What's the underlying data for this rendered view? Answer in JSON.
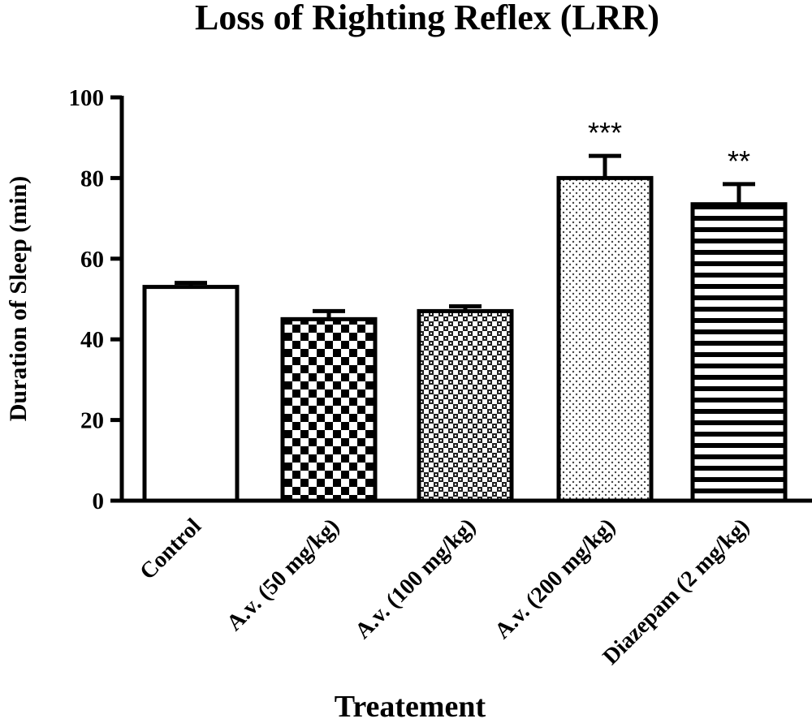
{
  "chart_data": {
    "type": "bar",
    "title": "Loss of Righting Reflex (LRR)",
    "xlabel": "Treatement",
    "ylabel": "Duration of Sleep (min)",
    "ylim": [
      0,
      100
    ],
    "yticks": [
      "0",
      "20",
      "40",
      "60",
      "80",
      "100"
    ],
    "categories": [
      "Control",
      "A.v. (50 mg/kg)",
      "A.v. (100 mg/kg)",
      "A.v. (200 mg/kg)",
      "Diazepam (2 mg/kg)"
    ],
    "values": [
      53,
      45,
      47,
      80,
      73.5
    ],
    "errors": [
      1,
      2,
      1.2,
      5.5,
      5
    ],
    "significance": [
      "",
      "",
      "",
      "***",
      "**"
    ],
    "fill_patterns": [
      "none",
      "checker",
      "fine-checker",
      "dots",
      "horizontal-stripes"
    ],
    "grid": false
  }
}
